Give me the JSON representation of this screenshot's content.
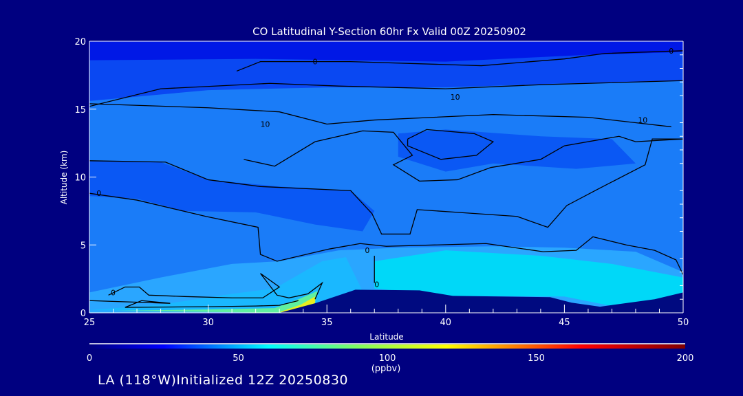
{
  "chart_data": {
    "type": "heatmap",
    "subtype": "contour cross-section",
    "title": "CO Latitudinal Y-Section 60hr  Fx Valid 00Z 20250902",
    "xlabel": "Latitude",
    "ylabel": "Altitude (km)",
    "xlim": [
      25,
      50
    ],
    "ylim": [
      0,
      20
    ],
    "xticks": [
      25,
      30,
      35,
      40,
      45,
      50
    ],
    "yticks": [
      0,
      5,
      10,
      15,
      20
    ],
    "colorbar": {
      "range": [
        0,
        200
      ],
      "ticks": [
        0,
        50,
        100,
        150,
        200
      ],
      "unit": "(ppbv)",
      "stops": [
        {
          "v": 0,
          "c": "#000080"
        },
        {
          "v": 25,
          "c": "#0000ff"
        },
        {
          "v": 60,
          "c": "#00ffff"
        },
        {
          "v": 90,
          "c": "#80ff60"
        },
        {
          "v": 120,
          "c": "#ffff00"
        },
        {
          "v": 165,
          "c": "#ff0000"
        },
        {
          "v": 200,
          "c": "#800000"
        }
      ]
    },
    "fields": [
      {
        "color": "#1a7cf8",
        "pts": [
          [
            25,
            0
          ],
          [
            50,
            0
          ],
          [
            50,
            20
          ],
          [
            25,
            20
          ]
        ]
      },
      {
        "color": "#0a48f2",
        "pts": [
          [
            25,
            15.6
          ],
          [
            30,
            16.4
          ],
          [
            35,
            16.6
          ],
          [
            40,
            16.6
          ],
          [
            45,
            16.9
          ],
          [
            50,
            17.1
          ],
          [
            50,
            20
          ],
          [
            25,
            20
          ]
        ]
      },
      {
        "color": "#0018e6",
        "pts": [
          [
            25,
            18.6
          ],
          [
            32,
            18.7
          ],
          [
            40,
            18.5
          ],
          [
            46,
            19.0
          ],
          [
            50,
            19.2
          ],
          [
            50,
            20
          ],
          [
            25,
            20
          ]
        ]
      },
      {
        "color": "#0a58f4",
        "pts": [
          [
            25,
            11.2
          ],
          [
            28,
            11.1
          ],
          [
            30,
            9.8
          ],
          [
            33,
            9.3
          ],
          [
            36,
            9.0
          ],
          [
            37,
            7.5
          ],
          [
            36.5,
            6.0
          ],
          [
            34.5,
            6.5
          ],
          [
            32,
            7.4
          ],
          [
            29,
            7.5
          ],
          [
            27,
            8.4
          ],
          [
            25,
            8.6
          ]
        ]
      },
      {
        "color": "#0a58f4",
        "pts": [
          [
            38,
            13.2
          ],
          [
            40,
            13.5
          ],
          [
            44,
            13.0
          ],
          [
            47,
            12.8
          ],
          [
            48,
            11.0
          ],
          [
            45.5,
            10.6
          ],
          [
            42,
            11.0
          ],
          [
            40,
            10.4
          ],
          [
            38,
            11.5
          ]
        ]
      },
      {
        "color": "#2aa6ff",
        "pts": [
          [
            25,
            1.5
          ],
          [
            28,
            2.6
          ],
          [
            31,
            3.6
          ],
          [
            33,
            3.8
          ],
          [
            35.5,
            4.6
          ],
          [
            38,
            4.8
          ],
          [
            42,
            4.9
          ],
          [
            45,
            4.8
          ],
          [
            48,
            4.5
          ],
          [
            50,
            3.0
          ],
          [
            50,
            0
          ],
          [
            25,
            0
          ]
        ]
      },
      {
        "color": "#00d8f8",
        "pts": [
          [
            37,
            1.8
          ],
          [
            37,
            3.8
          ],
          [
            40,
            4.6
          ],
          [
            44,
            4.2
          ],
          [
            47,
            3.6
          ],
          [
            50,
            2.6
          ],
          [
            50,
            0.9
          ],
          [
            47,
            0.5
          ],
          [
            45,
            1.2
          ],
          [
            40,
            1.25
          ]
        ]
      },
      {
        "color": "#1ab8ff",
        "pts": [
          [
            25,
            0.2
          ],
          [
            28,
            0.6
          ],
          [
            31,
            1.4
          ],
          [
            32.8,
            1.8
          ],
          [
            33.5,
            2.5
          ],
          [
            34.8,
            3.8
          ],
          [
            35.8,
            4.1
          ],
          [
            36.5,
            1.6
          ],
          [
            34.5,
            0.7
          ],
          [
            33,
            0
          ]
        ]
      },
      {
        "color": "#60f0a0",
        "pts": [
          [
            26,
            0.15
          ],
          [
            30,
            0.25
          ],
          [
            32.8,
            0.35
          ],
          [
            33.8,
            1.0
          ],
          [
            34.6,
            1.6
          ],
          [
            34.5,
            0.7
          ],
          [
            33.2,
            0
          ]
        ]
      },
      {
        "color": "#e8f020",
        "pts": [
          [
            33,
            0.05
          ],
          [
            33.9,
            0.6
          ],
          [
            34.5,
            1.2
          ],
          [
            34.5,
            0.7
          ],
          [
            33.4,
            0
          ]
        ]
      },
      {
        "color": "#000a80",
        "pts": [
          [
            33,
            0
          ],
          [
            34.5,
            0.7
          ],
          [
            36.2,
            1.7
          ],
          [
            38.9,
            1.65
          ],
          [
            40.3,
            1.25
          ],
          [
            44.4,
            1.15
          ],
          [
            45.3,
            0.75
          ],
          [
            46.5,
            0.45
          ],
          [
            48.8,
            1.0
          ],
          [
            50,
            1.5
          ],
          [
            50,
            0
          ]
        ]
      }
    ],
    "contours": [
      {
        "label": "0",
        "label_at": [
          34.5,
          18.5
        ],
        "pts": [
          [
            31.2,
            17.8
          ],
          [
            32.2,
            18.5
          ],
          [
            36,
            18.5
          ],
          [
            41.5,
            18.2
          ],
          [
            45,
            18.7
          ],
          [
            46.7,
            19.1
          ],
          [
            50,
            19.3
          ]
        ]
      },
      {
        "label": "0",
        "label_at": [
          49.5,
          19.3
        ],
        "pts": []
      },
      {
        "label": "10",
        "label_at": [
          40.4,
          15.9
        ],
        "pts": [
          [
            25,
            15.2
          ],
          [
            28,
            16.5
          ],
          [
            32.6,
            16.9
          ],
          [
            35.5,
            16.7
          ],
          [
            40,
            16.5
          ],
          [
            44,
            16.8
          ],
          [
            50,
            17.1
          ]
        ]
      },
      {
        "label": "10",
        "label_at": [
          32.4,
          13.9
        ],
        "pts": [
          [
            25,
            15.4
          ],
          [
            30,
            15.1
          ],
          [
            33,
            14.8
          ],
          [
            35,
            13.9
          ],
          [
            37,
            14.2
          ],
          [
            42,
            14.6
          ],
          [
            46,
            14.4
          ],
          [
            48,
            14.0
          ],
          [
            49.5,
            13.7
          ]
        ]
      },
      {
        "label": "10",
        "label_at": [
          48.3,
          14.2
        ],
        "pts": []
      },
      {
        "label": "",
        "label_at": null,
        "pts": [
          [
            38.4,
            12.8
          ],
          [
            39.2,
            13.5
          ],
          [
            41.2,
            13.2
          ],
          [
            42,
            12.6
          ],
          [
            41.3,
            11.6
          ],
          [
            39.8,
            11.3
          ],
          [
            38.4,
            12.3
          ],
          [
            38.4,
            12.8
          ]
        ]
      },
      {
        "label": "",
        "label_at": null,
        "pts": [
          [
            31.5,
            11.3
          ],
          [
            32.8,
            10.8
          ],
          [
            34.5,
            12.6
          ],
          [
            36.5,
            13.4
          ],
          [
            37.8,
            13.3
          ],
          [
            38.6,
            11.6
          ],
          [
            37.8,
            10.9
          ],
          [
            38.9,
            9.7
          ],
          [
            40.5,
            9.8
          ],
          [
            41.9,
            10.7
          ],
          [
            44,
            11.3
          ],
          [
            45,
            12.3
          ],
          [
            47.3,
            13.0
          ],
          [
            48,
            12.6
          ],
          [
            50,
            12.8
          ]
        ]
      },
      {
        "label": "0",
        "label_at": [
          25.4,
          8.8
        ],
        "pts": [
          [
            25,
            11.2
          ],
          [
            28.2,
            11.1
          ],
          [
            30,
            9.8
          ],
          [
            32.2,
            9.3
          ],
          [
            36,
            9.0
          ],
          [
            36.9,
            7.3
          ],
          [
            37.3,
            5.8
          ],
          [
            38.5,
            5.8
          ],
          [
            38.8,
            7.6
          ],
          [
            40.5,
            7.4
          ],
          [
            43,
            7.1
          ],
          [
            44.3,
            6.3
          ],
          [
            45.1,
            7.9
          ],
          [
            46.4,
            9.1
          ],
          [
            48.4,
            10.9
          ],
          [
            48.7,
            12.8
          ],
          [
            50,
            12.8
          ]
        ]
      },
      {
        "label": "0",
        "label_at": [
          36.7,
          4.6
        ],
        "pts": [
          [
            25,
            8.8
          ],
          [
            27,
            8.3
          ],
          [
            29.9,
            7.1
          ],
          [
            32.1,
            6.3
          ],
          [
            32.2,
            4.3
          ],
          [
            32.9,
            3.8
          ],
          [
            35.1,
            4.7
          ],
          [
            36.4,
            5.1
          ],
          [
            37.5,
            4.9
          ],
          [
            41.7,
            5.1
          ],
          [
            44.1,
            4.5
          ],
          [
            45.5,
            4.6
          ],
          [
            46.2,
            5.6
          ],
          [
            47.6,
            5.0
          ],
          [
            48.8,
            4.6
          ],
          [
            49.7,
            3.9
          ],
          [
            50,
            2.8
          ]
        ]
      },
      {
        "label": "0",
        "label_at": [
          37.1,
          2.1
        ],
        "pts": [
          [
            37,
            4.2
          ],
          [
            37,
            2.2
          ]
        ]
      },
      {
        "label": "0",
        "label_at": [
          26,
          1.5
        ],
        "pts": [
          [
            25.8,
            1.3
          ],
          [
            26.5,
            1.9
          ],
          [
            27.1,
            1.9
          ],
          [
            27.5,
            1.3
          ],
          [
            29,
            1.2
          ],
          [
            31,
            1.1
          ],
          [
            32.3,
            1.1
          ],
          [
            33,
            1.9
          ],
          [
            32.2,
            2.9
          ],
          [
            32.9,
            1.3
          ],
          [
            33.4,
            1.1
          ],
          [
            34.2,
            1.4
          ],
          [
            34.8,
            2.2
          ],
          [
            34.5,
            1.0
          ]
        ]
      },
      {
        "label": "",
        "label_at": null,
        "pts": [
          [
            25,
            0.9
          ],
          [
            28.4,
            0.7
          ],
          [
            27.2,
            0.9
          ],
          [
            26.5,
            0.4
          ],
          [
            30,
            0.45
          ],
          [
            32,
            0.5
          ],
          [
            33,
            0.55
          ],
          [
            33.8,
            0.9
          ]
        ]
      }
    ]
  },
  "footer": {
    "initialized": "LA (118°W)Initialized 12Z 20250830"
  }
}
